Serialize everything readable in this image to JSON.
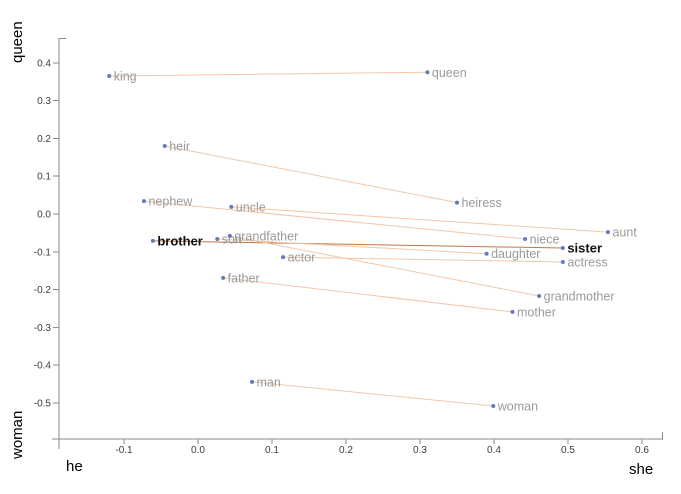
{
  "chart_data": {
    "type": "scatter",
    "title": "",
    "axis_labels": {
      "x_left": "he",
      "x_right": "she",
      "y_top": "queen",
      "y_bottom": "woman"
    },
    "x_ticks": [
      "-0.1",
      "0.0",
      "0.1",
      "0.2",
      "0.3",
      "0.4",
      "0.5",
      "0.6"
    ],
    "y_ticks": [
      "0.4",
      "0.3",
      "0.2",
      "0.1",
      "0.0",
      "-0.1",
      "-0.2",
      "-0.3",
      "-0.4",
      "-0.5"
    ],
    "xlim": [
      -0.19,
      0.63
    ],
    "ylim": [
      -0.62,
      0.47
    ],
    "grid": false,
    "points": [
      {
        "label": "king",
        "x": -0.12,
        "y": 0.365,
        "highlight": false
      },
      {
        "label": "queen",
        "x": 0.31,
        "y": 0.375,
        "highlight": false
      },
      {
        "label": "heir",
        "x": -0.045,
        "y": 0.18,
        "highlight": false
      },
      {
        "label": "heiress",
        "x": 0.35,
        "y": 0.03,
        "highlight": false
      },
      {
        "label": "nephew",
        "x": -0.073,
        "y": 0.034,
        "highlight": false
      },
      {
        "label": "niece",
        "x": 0.442,
        "y": -0.066,
        "highlight": false
      },
      {
        "label": "uncle",
        "x": 0.045,
        "y": 0.019,
        "highlight": false
      },
      {
        "label": "aunt",
        "x": 0.554,
        "y": -0.048,
        "highlight": false
      },
      {
        "label": "brother",
        "x": -0.061,
        "y": -0.071,
        "highlight": true
      },
      {
        "label": "sister",
        "x": 0.493,
        "y": -0.09,
        "highlight": true
      },
      {
        "label": "son",
        "x": 0.026,
        "y": -0.066,
        "highlight": false
      },
      {
        "label": "daughter",
        "x": 0.39,
        "y": -0.105,
        "highlight": false
      },
      {
        "label": "grandfather",
        "x": 0.043,
        "y": -0.058,
        "highlight": false
      },
      {
        "label": "grandmother",
        "x": 0.461,
        "y": -0.217,
        "highlight": false
      },
      {
        "label": "father",
        "x": 0.034,
        "y": -0.169,
        "highlight": false
      },
      {
        "label": "mother",
        "x": 0.425,
        "y": -0.259,
        "highlight": false
      },
      {
        "label": "actor",
        "x": 0.115,
        "y": -0.114,
        "highlight": false
      },
      {
        "label": "actress",
        "x": 0.493,
        "y": -0.127,
        "highlight": false
      },
      {
        "label": "man",
        "x": 0.073,
        "y": -0.444,
        "highlight": false
      },
      {
        "label": "woman",
        "x": 0.399,
        "y": -0.508,
        "highlight": false
      }
    ],
    "pairs": [
      {
        "from": "king",
        "to": "queen",
        "highlight": false
      },
      {
        "from": "heir",
        "to": "heiress",
        "highlight": false
      },
      {
        "from": "nephew",
        "to": "niece",
        "highlight": false
      },
      {
        "from": "uncle",
        "to": "aunt",
        "highlight": false
      },
      {
        "from": "brother",
        "to": "sister",
        "highlight": true
      },
      {
        "from": "son",
        "to": "daughter",
        "highlight": false
      },
      {
        "from": "grandfather",
        "to": "grandmother",
        "highlight": false
      },
      {
        "from": "father",
        "to": "mother",
        "highlight": false
      },
      {
        "from": "actor",
        "to": "actress",
        "highlight": false
      },
      {
        "from": "man",
        "to": "woman",
        "highlight": false
      }
    ],
    "colors": {
      "point": "#5e7cc0",
      "label": "#9a9a9a",
      "highlight_label": "#111111",
      "line": "#f3c6a7",
      "highlight_line": "#bf7845",
      "axis": "#8a8a8a",
      "tick_label": "#3c3c3c"
    }
  }
}
